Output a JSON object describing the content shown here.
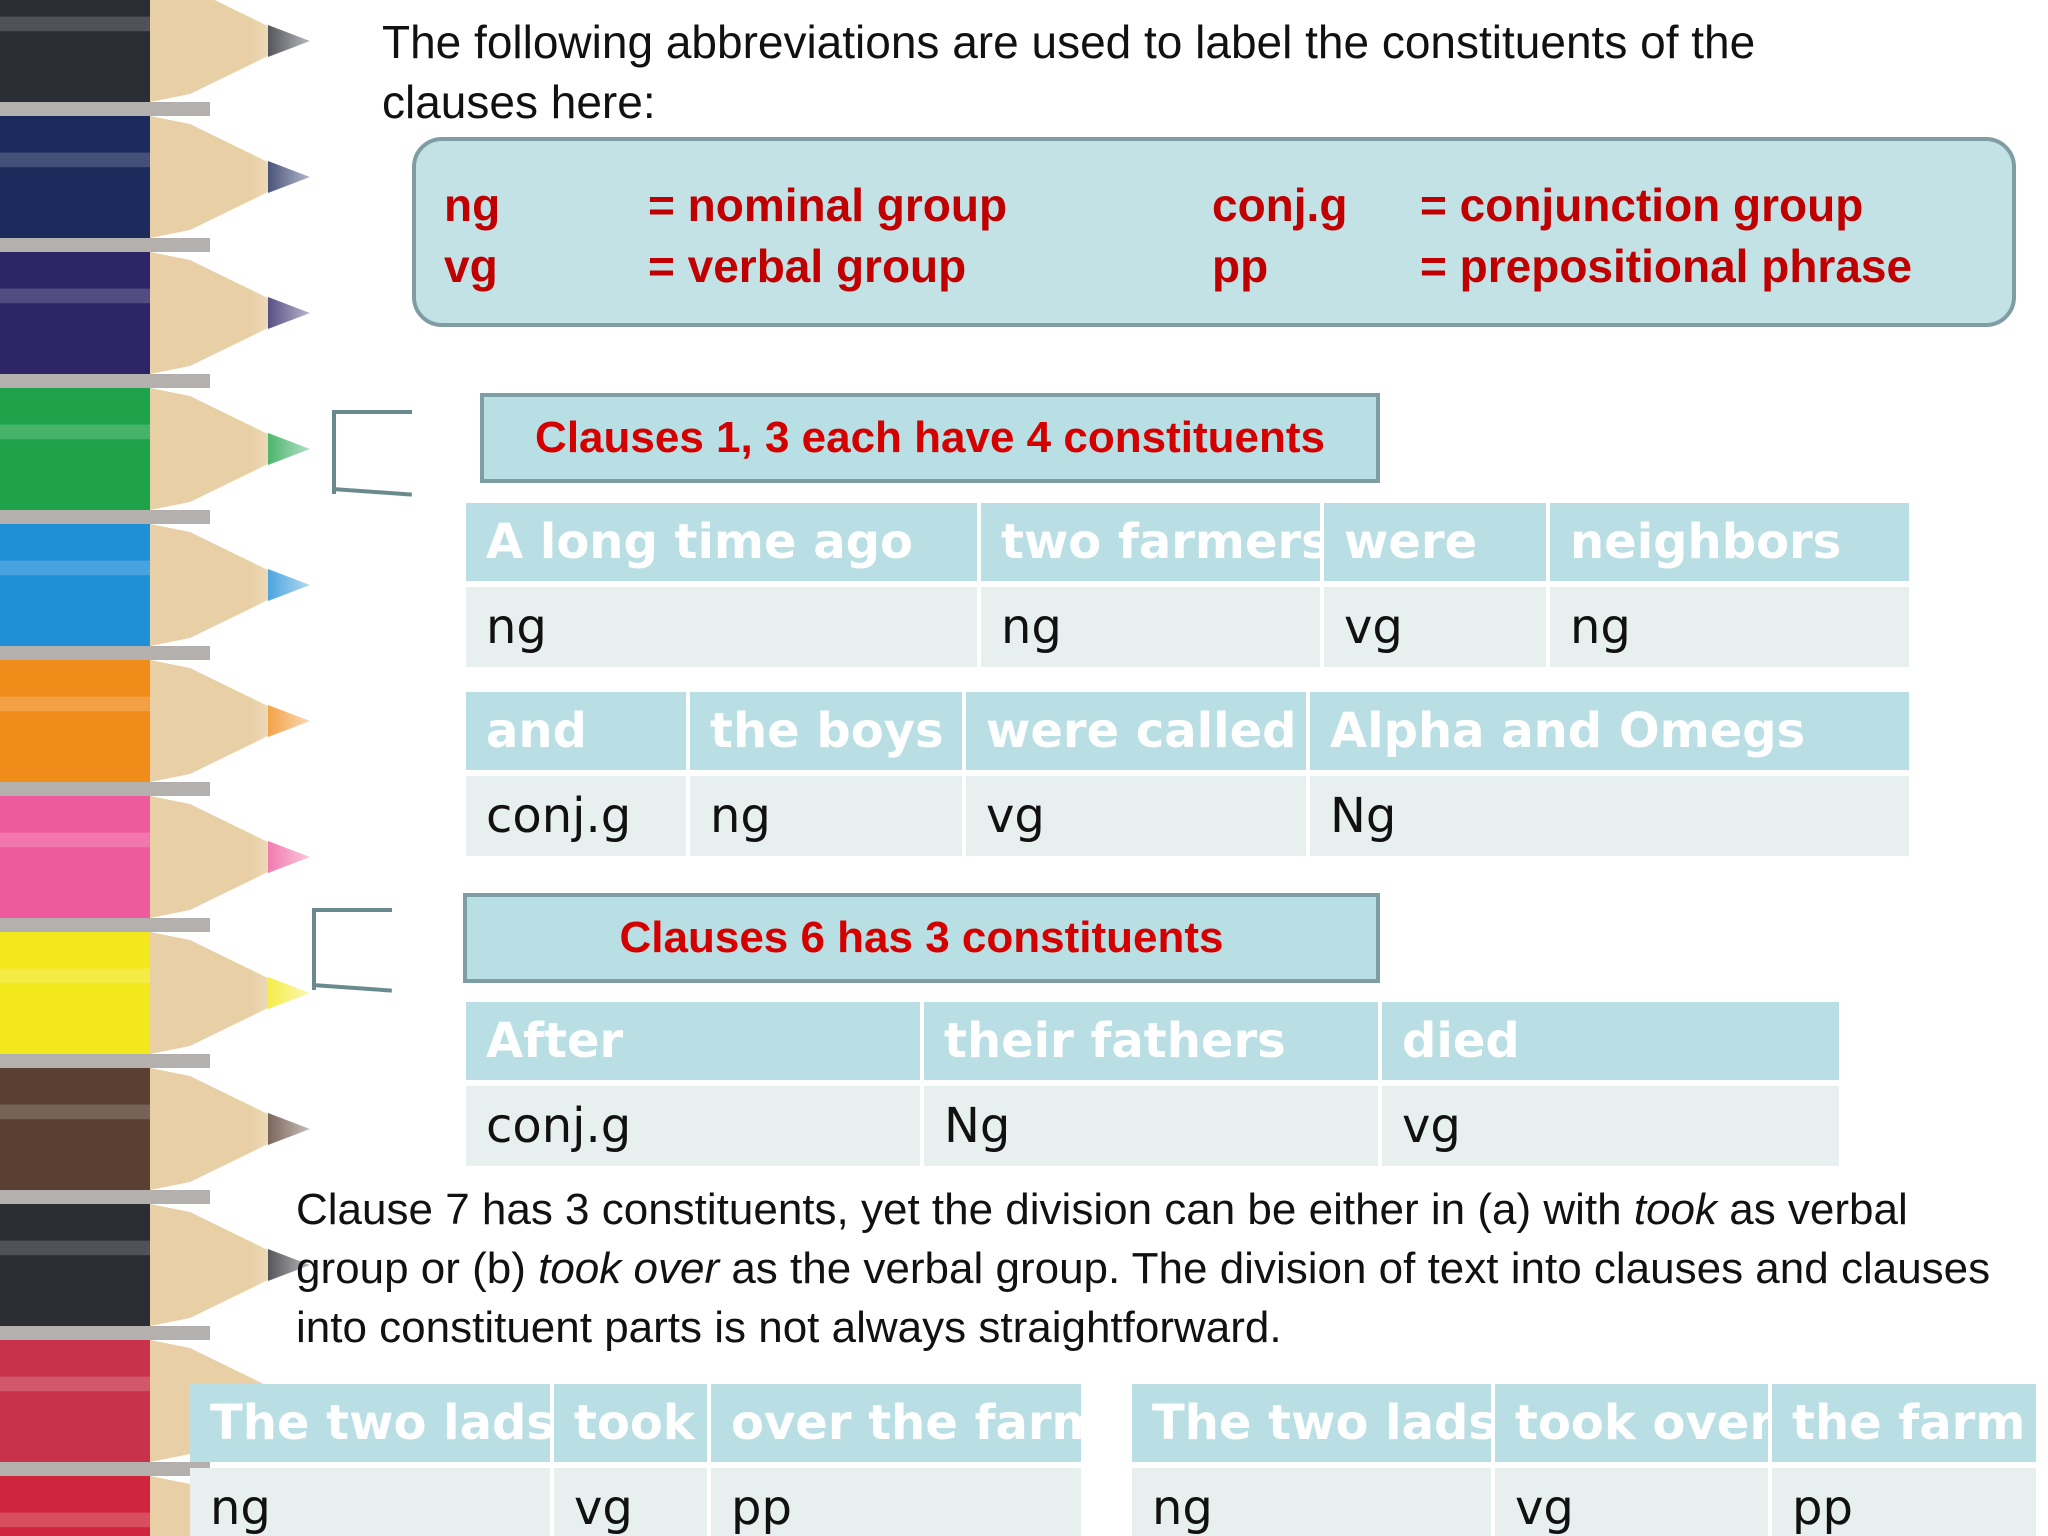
{
  "intro": {
    "line1": "The following abbreviations are used to label the constituents of the",
    "line2": "clauses here:"
  },
  "legend": {
    "items": [
      {
        "abbr": "ng",
        "meaning": "= nominal group"
      },
      {
        "abbr": "vg",
        "meaning": "= verbal group"
      },
      {
        "abbr": "conj.g",
        "meaning": "= conjunction group"
      },
      {
        "abbr": "pp",
        "meaning": "= prepositional phrase"
      }
    ]
  },
  "headings": {
    "clauses_1_3": "Clauses 1, 3  each have 4 constituents",
    "clause_6": "Clauses 6 has 3 constituents"
  },
  "tables": {
    "clause1": {
      "words": [
        "A long time ago",
        "two farmers",
        "were",
        "neighbors"
      ],
      "tags": [
        "ng",
        "ng",
        "vg",
        "ng"
      ]
    },
    "clause3": {
      "words": [
        "and",
        "the boys",
        "were called",
        "Alpha and Omegs"
      ],
      "tags": [
        "conj.g",
        "ng",
        "vg",
        "Ng"
      ]
    },
    "clause6": {
      "words": [
        "After",
        "their fathers",
        "died"
      ],
      "tags": [
        "conj.g",
        "Ng",
        "vg"
      ]
    },
    "clause7a": {
      "words": [
        "The two lads",
        "took",
        "over the farm"
      ],
      "tags": [
        "ng",
        "vg",
        "pp"
      ]
    },
    "clause7b": {
      "words": [
        "The two lads",
        "took over",
        "the farm"
      ],
      "tags": [
        "ng",
        "vg",
        "pp"
      ]
    }
  },
  "note": {
    "p1": "Clause 7 has 3 constituents, yet the division can be either in (a) with ",
    "took": "took",
    "p2": " as verbal group or (b) ",
    "took_over": "took over",
    "p3": " as the verbal group. The division of text into clauses and clauses into constituent parts is not always straightforward."
  },
  "pencil_colors": [
    "#2a2d33",
    "#1d2a5c",
    "#2e2566",
    "#1fa34a",
    "#1f8fd6",
    "#f08c1a",
    "#ee5a9c",
    "#f2e81c",
    "#5a4033",
    "#2b2d33",
    "#c8324a",
    "#d0263d"
  ]
}
